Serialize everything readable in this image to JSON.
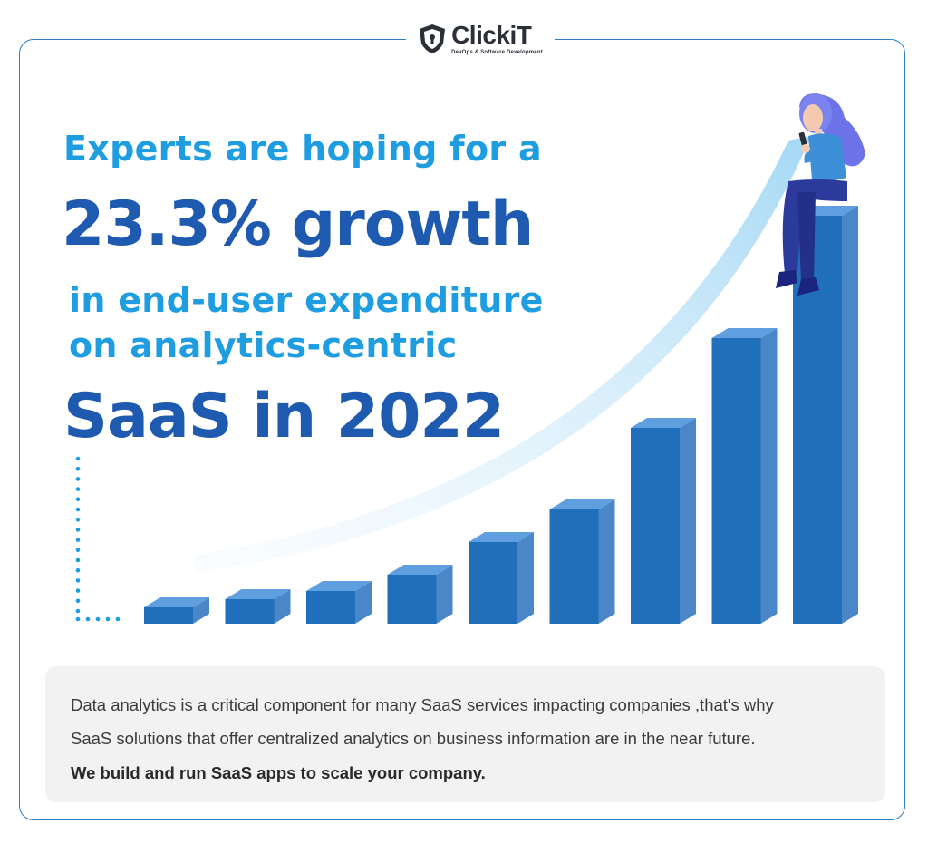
{
  "brand": {
    "name": "ClickiT",
    "tagline": "DevOps & Software Development"
  },
  "headline": {
    "line1": "Experts are hoping for a",
    "line2": "23.3% growth",
    "line3": "in end-user expenditure",
    "line4": "on analytics-centric",
    "line5": "SaaS in 2022"
  },
  "info": {
    "line1": "Data analytics is a critical component for many SaaS services impacting companies ,that's why",
    "line2": "SaaS solutions that offer centralized analytics on business information are in the near future.",
    "line3": "We build and run SaaS apps to scale your company."
  },
  "bars": {
    "relative_heights": [
      0.04,
      0.06,
      0.08,
      0.12,
      0.2,
      0.28,
      0.48,
      0.7,
      1.0
    ]
  },
  "colors": {
    "accent_light": "#1f9de1",
    "accent_dark": "#1e5bb0",
    "bar_front": "#1f6fba",
    "bar_top": "#5f9fe0",
    "bar_side": "#4a86c8",
    "frame": "#2a7fc4",
    "info_bg": "#f2f2f3"
  },
  "illustration": {
    "figure": "woman-sitting-with-phone-icon",
    "curve": "growth-arrow-curve"
  }
}
